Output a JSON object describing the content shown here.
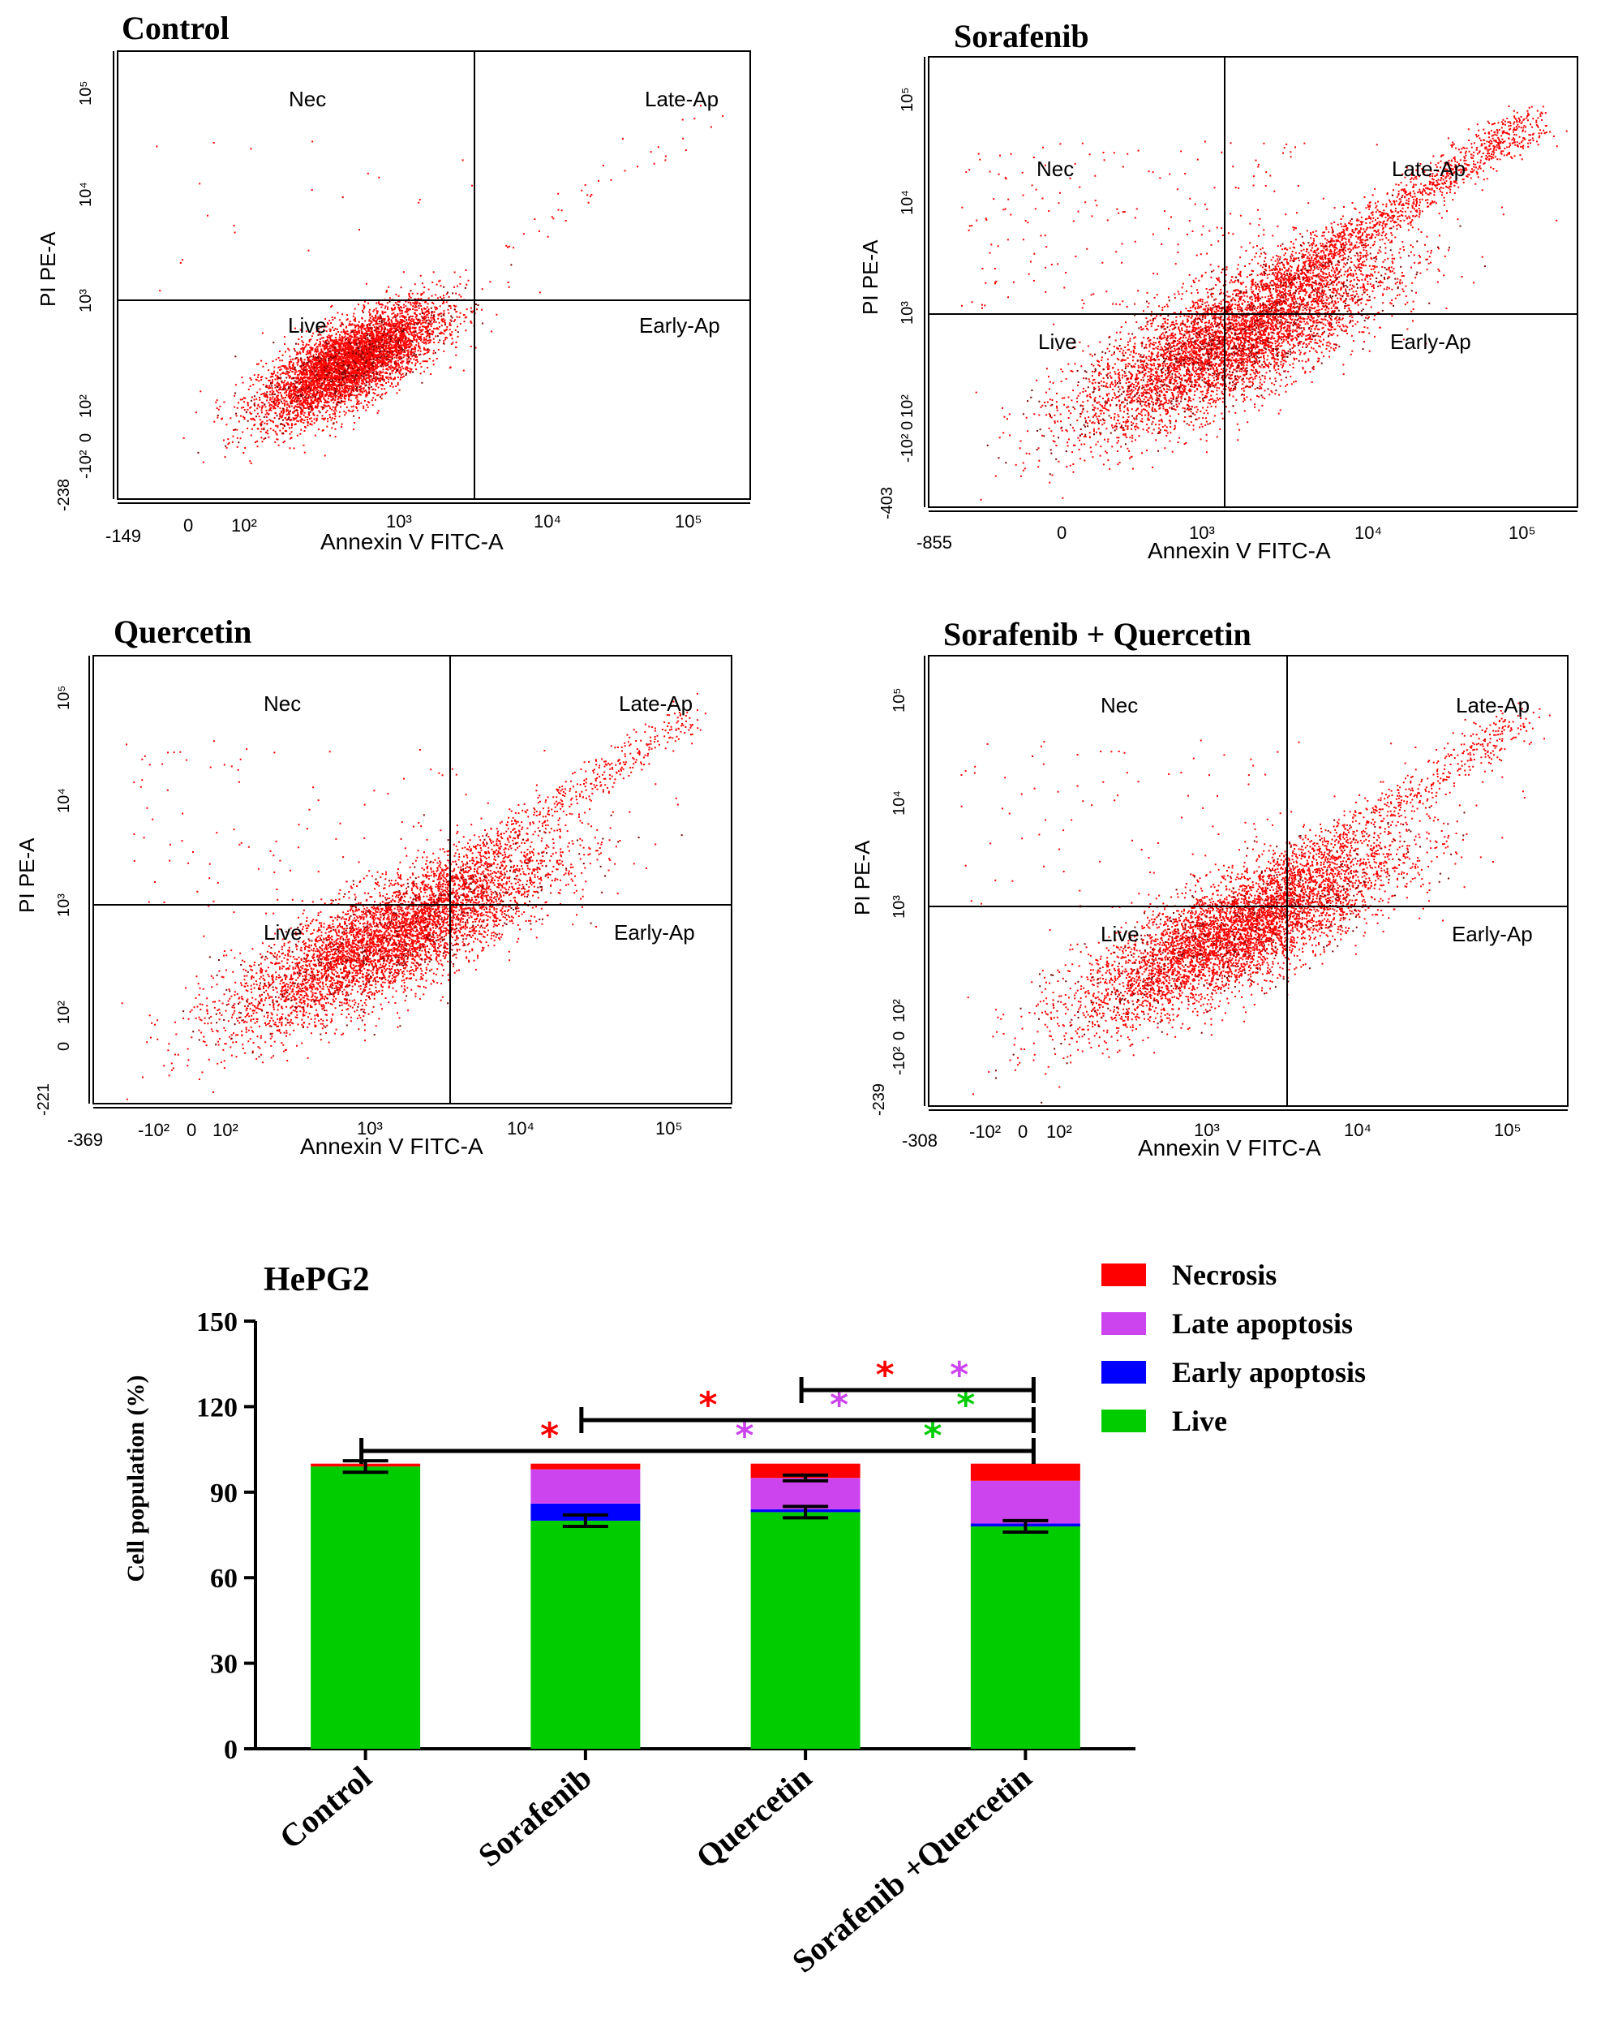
{
  "chart_data": [
    {
      "type": "scatter",
      "title": "Control",
      "xlabel": "Annexin V FITC-A",
      "ylabel": "PI PE-A",
      "x_ticks": [
        "-149",
        "0",
        "10²",
        "10³",
        "10⁴",
        "10⁵"
      ],
      "y_ticks": [
        "-238",
        "-10²",
        "0",
        "10²",
        "10³",
        "10⁴",
        "10⁵"
      ],
      "quadrants": {
        "ul": "Nec",
        "ur": "Late-Ap",
        "ll": "Live",
        "lr": "Early-Ap"
      },
      "population": {
        "n": 5200,
        "cx": 1.6,
        "cy": 1.2,
        "sx": 0.42,
        "sy": 0.38,
        "corr": 0.72,
        "tail_n": 40
      },
      "point_color": "#ff0000"
    },
    {
      "type": "scatter",
      "title": "Sorafenib",
      "xlabel": "Annexin V FITC-A",
      "ylabel": "PI PE-A",
      "x_ticks": [
        "-855",
        "0",
        "10³",
        "10⁴",
        "10⁵"
      ],
      "y_ticks": [
        "-403",
        "-10²",
        "0",
        "10²",
        "10³",
        "10⁴",
        "10⁵"
      ],
      "quadrants": {
        "ul": "Nec",
        "ur": "Late-Ap",
        "ll": "Live",
        "lr": "Early-Ap"
      },
      "population": {
        "n": 9000,
        "cx": 2.2,
        "cy": 1.6,
        "sx": 0.7,
        "sy": 0.6,
        "corr": 0.75,
        "tail_n": 1300
      },
      "point_color": "#ff0000"
    },
    {
      "type": "scatter",
      "title": "Quercetin",
      "xlabel": "Annexin V FITC-A",
      "ylabel": "PI PE-A",
      "x_ticks": [
        "-369",
        "-10²",
        "0",
        "10²",
        "10³",
        "10⁴",
        "10⁵"
      ],
      "y_ticks": [
        "-221",
        "0",
        "10²",
        "10³",
        "10⁴",
        "10⁵"
      ],
      "quadrants": {
        "ul": "Nec",
        "ur": "Late-Ap",
        "ll": "Live",
        "lr": "Early-Ap"
      },
      "population": {
        "n": 5200,
        "cx": 2.2,
        "cy": 1.6,
        "sx": 0.75,
        "sy": 0.6,
        "corr": 0.8,
        "tail_n": 500
      },
      "point_color": "#ff0000"
    },
    {
      "type": "scatter",
      "title": "Sorafenib + Quercetin",
      "xlabel": "Annexin V FITC-A",
      "ylabel": "PI PE-A",
      "x_ticks": [
        "-308",
        "-10²",
        "0",
        "10²",
        "10³",
        "10⁴",
        "10⁵"
      ],
      "y_ticks": [
        "-239",
        "-10²",
        "0",
        "10²",
        "10³",
        "10⁴",
        "10⁵"
      ],
      "quadrants": {
        "ul": "Nec",
        "ur": "Late-Ap",
        "ll": "Live",
        "lr": "Early-Ap"
      },
      "population": {
        "n": 5200,
        "cx": 2.3,
        "cy": 1.7,
        "sx": 0.75,
        "sy": 0.6,
        "corr": 0.8,
        "tail_n": 550
      },
      "point_color": "#ff0000"
    },
    {
      "type": "bar",
      "stacked": true,
      "title": "HePG2",
      "ylabel": "Cell population (%)",
      "ylim": [
        0,
        150
      ],
      "yticks": [
        0,
        30,
        60,
        90,
        120,
        150
      ],
      "categories": [
        "Control",
        "Sorafenib",
        "Quercetin",
        "Sorafenib +Quercetin"
      ],
      "series": [
        {
          "name": "Live",
          "color": "#00cc00",
          "values": [
            99,
            80,
            83,
            78
          ],
          "errors": [
            2,
            2,
            2,
            2
          ]
        },
        {
          "name": "Early apoptosis",
          "color": "#0000ff",
          "values": [
            0,
            6,
            1,
            1
          ],
          "errors": [
            0,
            0,
            0,
            0
          ]
        },
        {
          "name": "Late apoptosis",
          "color": "#cc44ee",
          "values": [
            0,
            12,
            11,
            15
          ],
          "errors": [
            0,
            0,
            1,
            0
          ]
        },
        {
          "name": "Necrosis",
          "color": "#ff0000",
          "values": [
            1,
            2,
            5,
            6
          ],
          "errors": [
            0,
            0,
            0,
            0
          ]
        }
      ],
      "legend": [
        "Necrosis",
        "Late apoptosis",
        "Early apoptosis",
        "Live"
      ],
      "legend_colors": [
        "#ff0000",
        "#cc44ee",
        "#0000ff",
        "#00cc00"
      ],
      "significance": [
        {
          "from": "Control",
          "to": "Sorafenib +Quercetin",
          "marks": [
            "*",
            "*",
            "*"
          ],
          "colors": [
            "#ff0000",
            "#cc44ee",
            "#00cc00"
          ]
        },
        {
          "from": "Sorafenib",
          "to": "Sorafenib +Quercetin",
          "marks": [
            "*",
            "*",
            "*"
          ],
          "colors": [
            "#ff0000",
            "#cc44ee",
            "#00cc00"
          ]
        },
        {
          "from": "Quercetin",
          "to": "Sorafenib +Quercetin",
          "marks": [
            "*",
            "*"
          ],
          "colors": [
            "#ff0000",
            "#cc44ee"
          ]
        }
      ]
    }
  ]
}
